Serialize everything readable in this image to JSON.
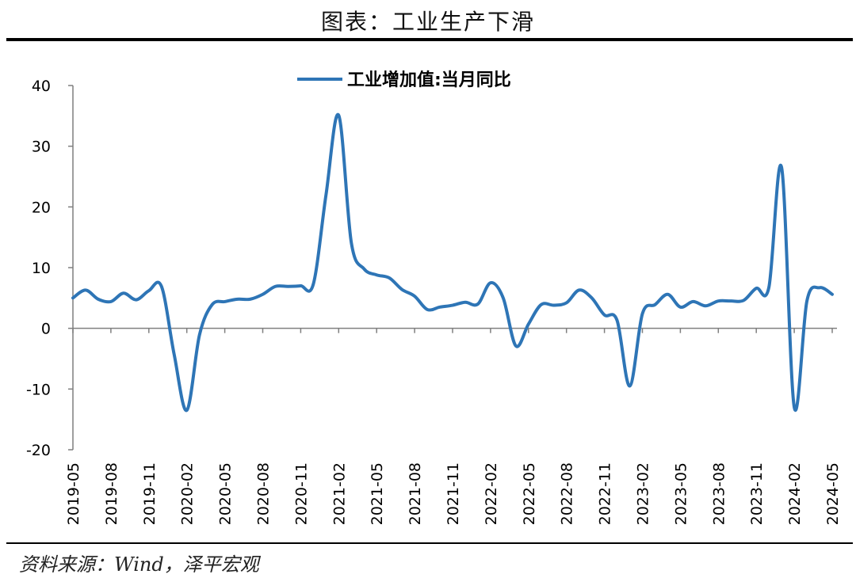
{
  "header": {
    "title": "图表：工业生产下滑"
  },
  "footer": {
    "source": "资料来源：Wind，泽平宏观"
  },
  "chart_data": {
    "type": "line",
    "color": "#2e75b6",
    "legend_position": "top-center",
    "grid": false,
    "ylim": [
      -20,
      40
    ],
    "yticks": [
      40,
      30,
      20,
      10,
      0,
      -10,
      -20
    ],
    "xtick_labels": [
      "2019-05",
      "2019-08",
      "2019-11",
      "2020-02",
      "2020-05",
      "2020-08",
      "2020-11",
      "2021-02",
      "2021-05",
      "2021-08",
      "2021-11",
      "2022-02",
      "2022-05",
      "2022-08",
      "2022-11",
      "2023-02",
      "2023-05",
      "2023-08",
      "2023-11",
      "2024-02",
      "2024-05"
    ],
    "x": [
      "2019-05",
      "2019-06",
      "2019-07",
      "2019-08",
      "2019-09",
      "2019-10",
      "2019-11",
      "2019-12",
      "2020-01",
      "2020-02",
      "2020-03",
      "2020-04",
      "2020-05",
      "2020-06",
      "2020-07",
      "2020-08",
      "2020-09",
      "2020-10",
      "2020-11",
      "2020-12",
      "2021-01",
      "2021-02",
      "2021-03",
      "2021-04",
      "2021-05",
      "2021-06",
      "2021-07",
      "2021-08",
      "2021-09",
      "2021-10",
      "2021-11",
      "2021-12",
      "2022-01",
      "2022-02",
      "2022-03",
      "2022-04",
      "2022-05",
      "2022-06",
      "2022-07",
      "2022-08",
      "2022-09",
      "2022-10",
      "2022-11",
      "2022-12",
      "2023-01",
      "2023-02",
      "2023-03",
      "2023-04",
      "2023-05",
      "2023-06",
      "2023-07",
      "2023-08",
      "2023-09",
      "2023-10",
      "2023-11",
      "2023-12",
      "2024-01",
      "2024-02",
      "2024-03",
      "2024-04",
      "2024-05"
    ],
    "series": [
      {
        "name": "工业增加值:当月同比",
        "values": [
          5.0,
          6.3,
          4.8,
          4.4,
          5.8,
          4.7,
          6.2,
          6.9,
          -4.3,
          -13.5,
          -1.1,
          3.9,
          4.4,
          4.8,
          4.8,
          5.6,
          6.9,
          6.9,
          7.0,
          7.3,
          22.0,
          35.1,
          14.1,
          9.8,
          8.8,
          8.3,
          6.4,
          5.3,
          3.1,
          3.5,
          3.8,
          4.3,
          4.0,
          7.5,
          5.0,
          -2.9,
          0.7,
          3.9,
          3.8,
          4.2,
          6.3,
          5.0,
          2.2,
          1.3,
          -9.5,
          2.4,
          3.9,
          5.6,
          3.5,
          4.4,
          3.7,
          4.5,
          4.5,
          4.6,
          6.6,
          6.8,
          26.5,
          -13.0,
          4.5,
          6.7,
          5.6
        ]
      }
    ]
  }
}
